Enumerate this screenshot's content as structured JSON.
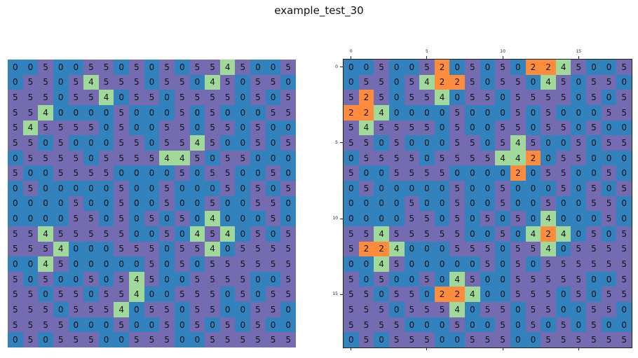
{
  "figure": {
    "title": "example_test_30"
  },
  "colors": {
    "0": "#3182bd",
    "5": "#756bb1",
    "4": "#a1d99b",
    "2": "#fd8d3c"
  },
  "left_grid": [
    [
      0,
      0,
      5,
      0,
      0,
      5,
      5,
      0,
      5,
      0,
      5,
      0,
      5,
      5,
      4,
      5,
      0,
      0,
      5
    ],
    [
      0,
      5,
      5,
      0,
      5,
      4,
      5,
      5,
      5,
      0,
      5,
      5,
      0,
      4,
      5,
      0,
      5,
      5,
      0
    ],
    [
      5,
      5,
      5,
      0,
      5,
      5,
      4,
      0,
      5,
      5,
      0,
      5,
      5,
      5,
      5,
      0,
      5,
      0,
      5
    ],
    [
      5,
      5,
      4,
      0,
      0,
      0,
      0,
      5,
      0,
      0,
      0,
      5,
      0,
      5,
      0,
      0,
      0,
      5,
      5
    ],
    [
      5,
      4,
      5,
      5,
      5,
      5,
      0,
      5,
      0,
      0,
      5,
      5,
      0,
      5,
      5,
      0,
      5,
      0,
      0
    ],
    [
      5,
      5,
      0,
      5,
      0,
      0,
      0,
      5,
      5,
      0,
      5,
      5,
      4,
      5,
      0,
      0,
      5,
      0,
      5
    ],
    [
      0,
      5,
      5,
      5,
      5,
      0,
      5,
      5,
      5,
      5,
      4,
      4,
      5,
      0,
      5,
      5,
      0,
      0,
      0
    ],
    [
      5,
      0,
      0,
      5,
      5,
      5,
      5,
      0,
      0,
      0,
      0,
      5,
      0,
      5,
      5,
      0,
      0,
      5,
      0
    ],
    [
      0,
      5,
      0,
      0,
      0,
      0,
      0,
      5,
      0,
      0,
      5,
      0,
      0,
      0,
      5,
      0,
      5,
      0,
      5
    ],
    [
      0,
      0,
      0,
      0,
      5,
      0,
      0,
      5,
      0,
      0,
      5,
      0,
      0,
      5,
      0,
      0,
      5,
      5,
      0
    ],
    [
      0,
      0,
      0,
      0,
      5,
      5,
      0,
      5,
      0,
      5,
      0,
      5,
      0,
      4,
      0,
      0,
      0,
      5,
      0
    ],
    [
      5,
      5,
      4,
      5,
      5,
      5,
      5,
      5,
      0,
      0,
      5,
      0,
      4,
      5,
      4,
      0,
      5,
      0,
      5
    ],
    [
      5,
      5,
      5,
      4,
      0,
      0,
      0,
      5,
      5,
      5,
      0,
      5,
      5,
      4,
      0,
      5,
      5,
      5,
      5
    ],
    [
      0,
      0,
      4,
      5,
      0,
      0,
      0,
      0,
      0,
      5,
      0,
      5,
      0,
      5,
      5,
      5,
      5,
      5,
      5
    ],
    [
      5,
      0,
      5,
      0,
      0,
      5,
      0,
      5,
      4,
      5,
      0,
      0,
      5,
      5,
      5,
      5,
      0,
      0,
      5
    ],
    [
      5,
      5,
      0,
      5,
      5,
      0,
      5,
      5,
      4,
      0,
      0,
      5,
      5,
      5,
      0,
      5,
      0,
      5,
      5
    ],
    [
      5,
      5,
      5,
      0,
      5,
      5,
      5,
      4,
      0,
      5,
      5,
      0,
      5,
      5,
      0,
      0,
      5,
      5,
      0
    ],
    [
      5,
      5,
      5,
      5,
      0,
      0,
      0,
      5,
      0,
      0,
      5,
      0,
      5,
      0,
      5,
      0,
      5,
      0,
      0
    ],
    [
      0,
      5,
      0,
      5,
      5,
      5,
      0,
      0,
      5,
      5,
      5,
      0,
      0,
      5,
      5,
      5,
      5,
      5,
      5
    ]
  ],
  "right_grid": [
    [
      0,
      0,
      5,
      0,
      0,
      5,
      2,
      0,
      5,
      0,
      5,
      0,
      2,
      2,
      4,
      5,
      0,
      0,
      5
    ],
    [
      0,
      5,
      5,
      0,
      5,
      4,
      2,
      2,
      5,
      0,
      5,
      5,
      0,
      4,
      5,
      0,
      5,
      5,
      0
    ],
    [
      5,
      2,
      5,
      0,
      5,
      5,
      4,
      0,
      5,
      5,
      0,
      5,
      5,
      5,
      5,
      0,
      5,
      0,
      5
    ],
    [
      2,
      2,
      4,
      0,
      0,
      0,
      0,
      5,
      0,
      0,
      0,
      5,
      0,
      5,
      0,
      0,
      0,
      5,
      5
    ],
    [
      5,
      4,
      5,
      5,
      5,
      5,
      0,
      5,
      0,
      0,
      5,
      5,
      0,
      5,
      5,
      0,
      5,
      0,
      0
    ],
    [
      5,
      5,
      0,
      5,
      0,
      0,
      0,
      5,
      5,
      0,
      5,
      4,
      5,
      0,
      0,
      5,
      0,
      5,
      5
    ],
    [
      0,
      5,
      5,
      5,
      5,
      0,
      5,
      5,
      5,
      5,
      4,
      4,
      2,
      0,
      5,
      5,
      0,
      0,
      0
    ],
    [
      5,
      0,
      0,
      5,
      5,
      5,
      5,
      0,
      0,
      0,
      0,
      2,
      0,
      5,
      5,
      0,
      0,
      5,
      0
    ],
    [
      0,
      5,
      0,
      0,
      0,
      0,
      0,
      5,
      0,
      0,
      5,
      0,
      0,
      0,
      5,
      0,
      5,
      0,
      5
    ],
    [
      0,
      0,
      0,
      0,
      5,
      0,
      0,
      5,
      0,
      0,
      5,
      0,
      0,
      5,
      0,
      0,
      5,
      5,
      0
    ],
    [
      0,
      0,
      0,
      0,
      5,
      5,
      0,
      5,
      0,
      5,
      0,
      5,
      0,
      4,
      0,
      0,
      0,
      5,
      0
    ],
    [
      5,
      5,
      4,
      5,
      5,
      5,
      5,
      5,
      0,
      0,
      5,
      0,
      4,
      2,
      4,
      0,
      5,
      0,
      5
    ],
    [
      5,
      2,
      2,
      4,
      0,
      0,
      0,
      5,
      5,
      5,
      0,
      5,
      5,
      4,
      0,
      5,
      5,
      5,
      5
    ],
    [
      0,
      0,
      4,
      5,
      0,
      0,
      0,
      0,
      0,
      5,
      0,
      5,
      0,
      5,
      5,
      5,
      5,
      5,
      5
    ],
    [
      5,
      0,
      5,
      0,
      0,
      5,
      0,
      4,
      5,
      0,
      0,
      5,
      5,
      5,
      5,
      5,
      0,
      0,
      5
    ],
    [
      5,
      5,
      0,
      5,
      5,
      0,
      2,
      2,
      4,
      0,
      0,
      5,
      5,
      5,
      0,
      5,
      0,
      5,
      5
    ],
    [
      5,
      5,
      5,
      0,
      5,
      5,
      5,
      4,
      0,
      5,
      5,
      0,
      5,
      5,
      0,
      0,
      5,
      5,
      0
    ],
    [
      5,
      5,
      5,
      5,
      0,
      0,
      0,
      5,
      0,
      0,
      5,
      0,
      5,
      0,
      5,
      0,
      5,
      0,
      0
    ],
    [
      0,
      5,
      0,
      5,
      5,
      5,
      0,
      0,
      5,
      5,
      5,
      0,
      0,
      5,
      5,
      5,
      5,
      5,
      5
    ]
  ],
  "right_axes": {
    "x_ticks": [
      {
        "value": 0,
        "label": "0"
      },
      {
        "value": 5,
        "label": "5"
      },
      {
        "value": 10,
        "label": "10"
      },
      {
        "value": 15,
        "label": "15"
      }
    ],
    "y_ticks": [
      {
        "value": 0,
        "label": "0"
      },
      {
        "value": 5,
        "label": "5"
      },
      {
        "value": 10,
        "label": "10"
      },
      {
        "value": 15,
        "label": "15"
      }
    ]
  }
}
